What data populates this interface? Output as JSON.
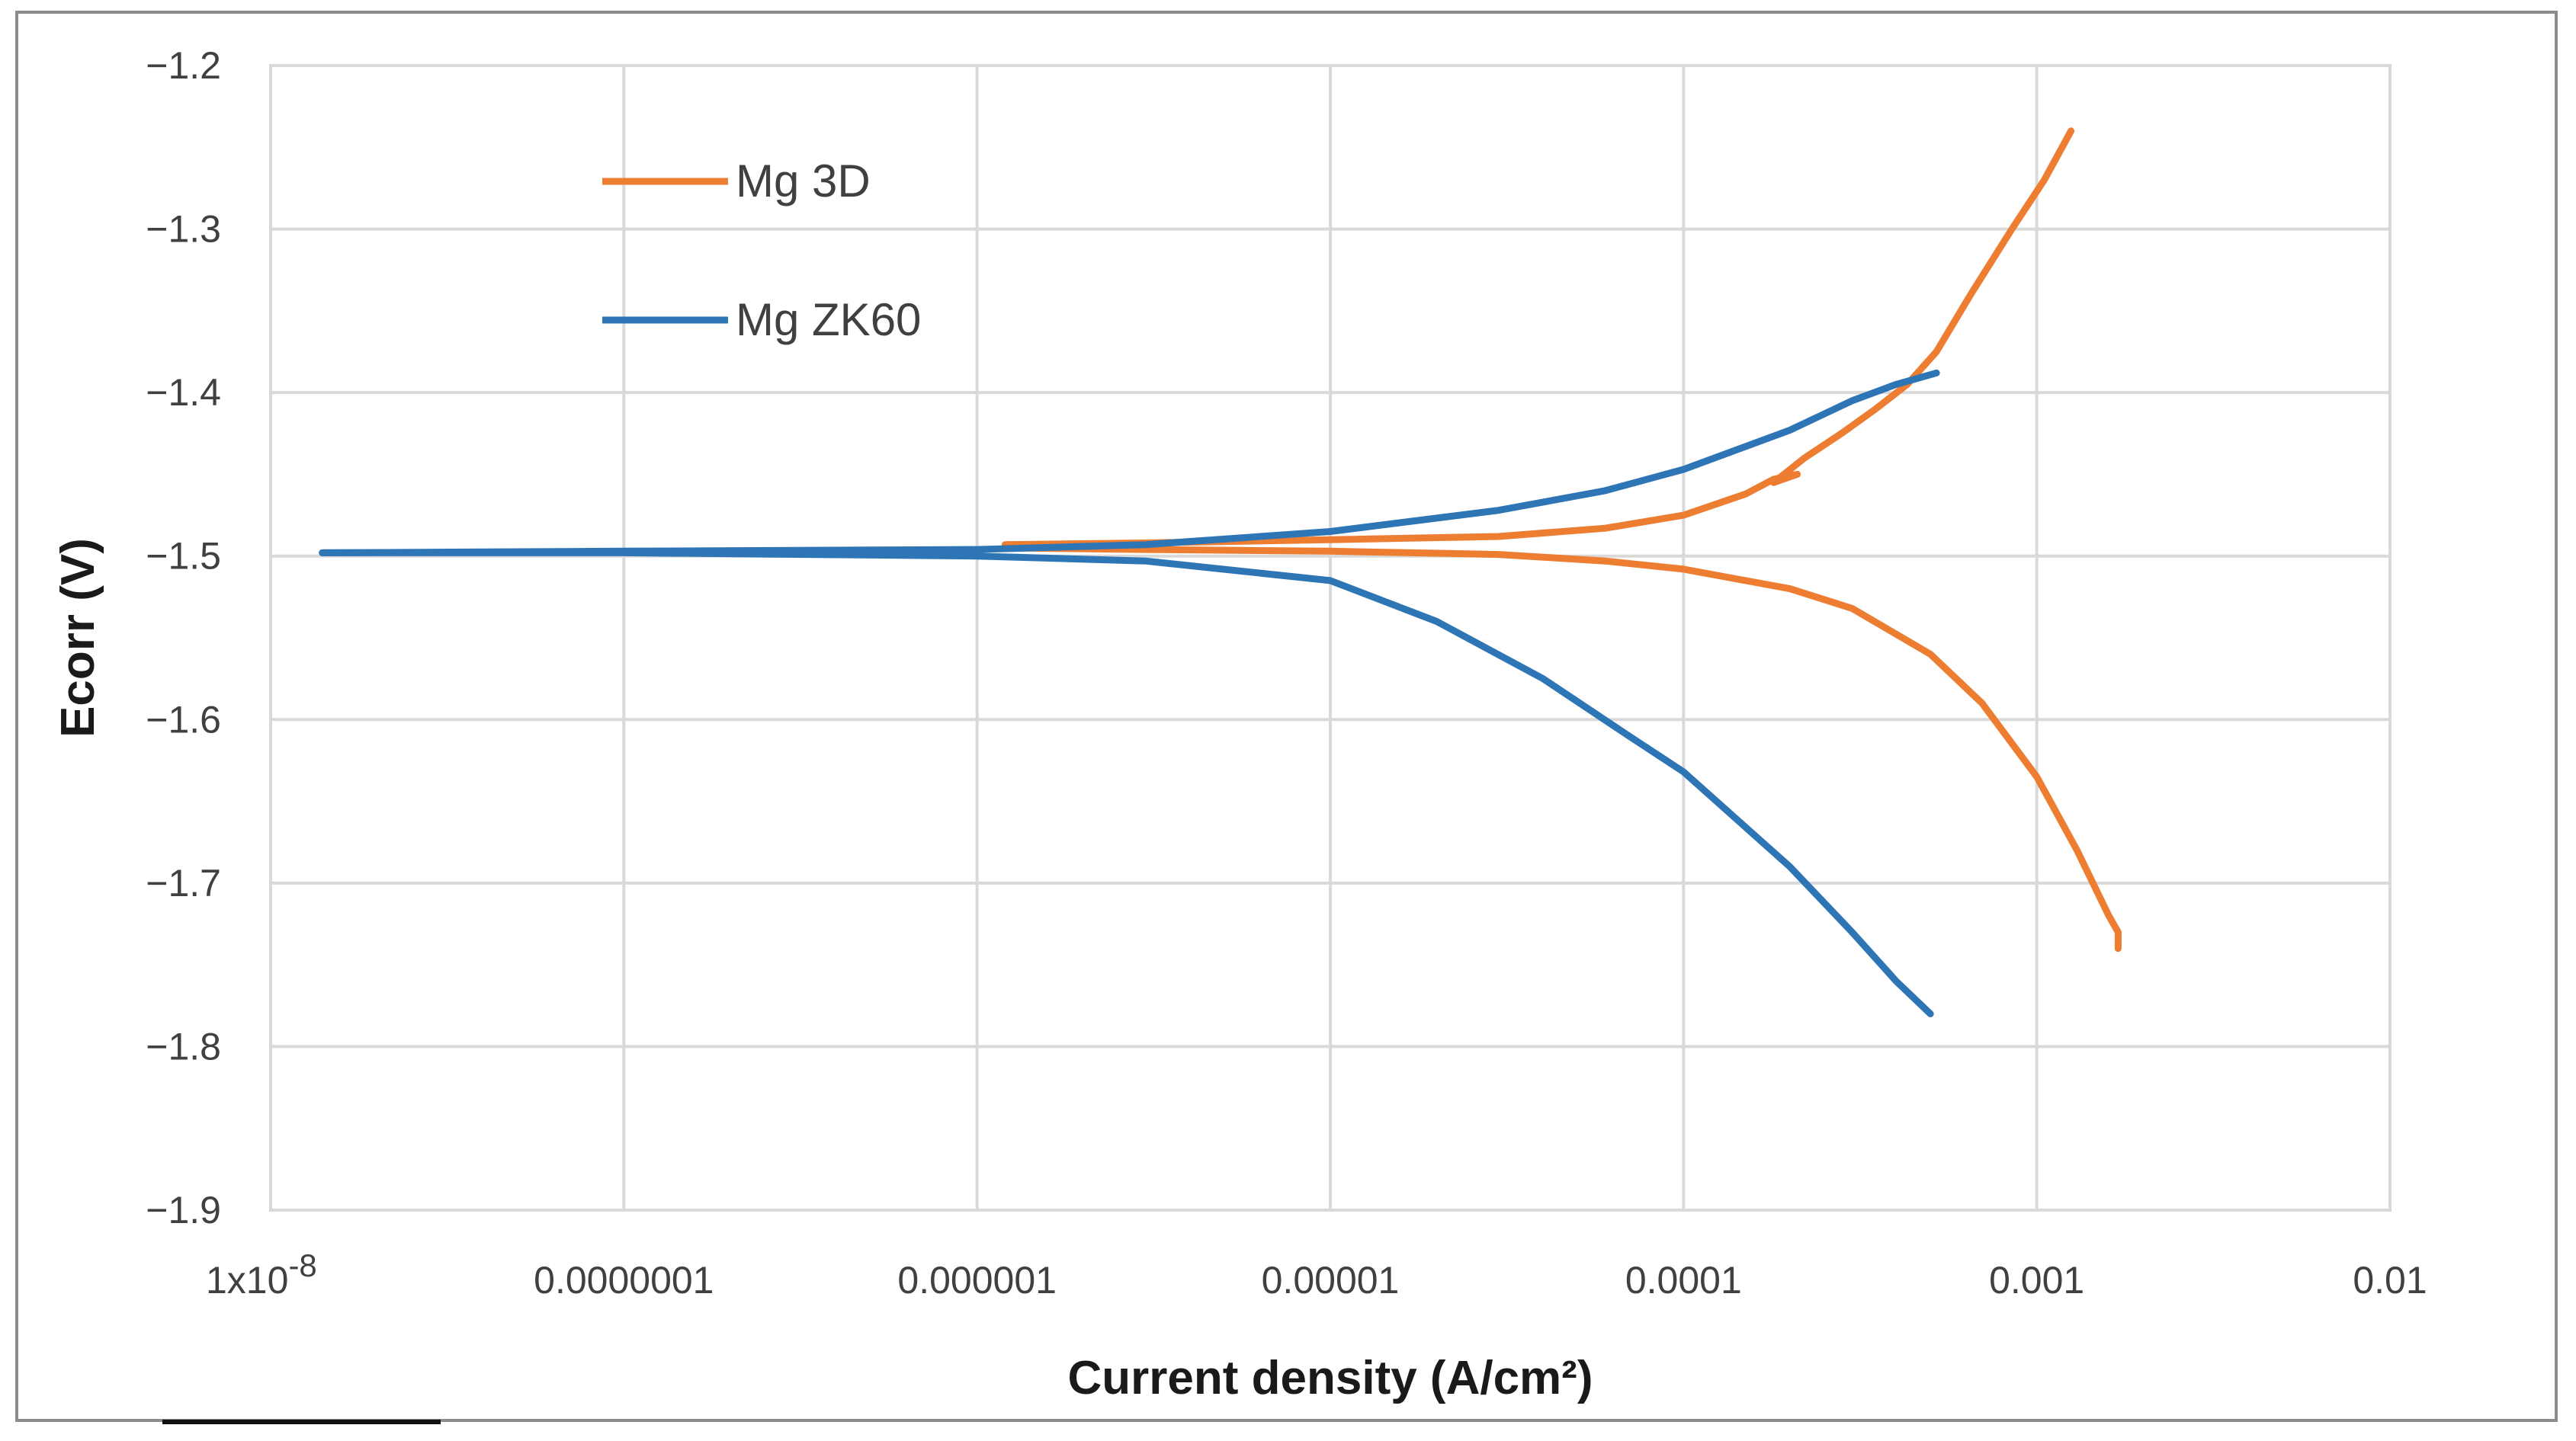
{
  "chart_data": {
    "type": "line",
    "title": "",
    "xlabel": "Current density (A/cm²)",
    "ylabel": "Ecorr (V)",
    "x_scale": "log",
    "xlim": [
      1e-08,
      0.01
    ],
    "ylim": [
      -1.9,
      -1.2
    ],
    "grid": true,
    "legend_position": "top-left",
    "x_tick_values": [
      1e-08,
      1e-07,
      1e-06,
      1e-05,
      0.0001,
      0.001,
      0.01
    ],
    "x_tick_labels": [
      "1x10",
      "0.0000001",
      "0.000001",
      "0.00001",
      "0.0001",
      "0.001",
      "0.01"
    ],
    "x_first_tick_exponent": "-8",
    "y_ticks": [
      -1.2,
      -1.3,
      -1.4,
      -1.5,
      -1.6,
      -1.7,
      -1.8,
      -1.9
    ],
    "y_tick_labels": [
      "−1.2",
      "−1.3",
      "−1.4",
      "−1.5",
      "−1.6",
      "−1.7",
      "−1.8",
      "−1.9"
    ],
    "series": [
      {
        "name": "Mg 3D",
        "color": "#ED7D31",
        "branches": [
          {
            "x": [
              1.2e-06,
              3e-06,
              1e-05,
              3e-05,
              6e-05,
              0.0001,
              0.00015,
              0.00018,
              0.00021,
              0.00018,
              0.00022,
              0.00028,
              0.00035,
              0.00043,
              0.00052,
              0.00065,
              0.00085,
              0.00105,
              0.00125
            ],
            "y": [
              -1.493,
              -1.492,
              -1.49,
              -1.488,
              -1.483,
              -1.475,
              -1.462,
              -1.453,
              -1.45,
              -1.455,
              -1.44,
              -1.425,
              -1.41,
              -1.395,
              -1.375,
              -1.34,
              -1.3,
              -1.27,
              -1.24
            ]
          },
          {
            "x": [
              1.2e-06,
              3e-06,
              1e-05,
              3e-05,
              6e-05,
              0.0001,
              0.0002,
              0.0003,
              0.0005,
              0.0007,
              0.001,
              0.0013,
              0.0016,
              0.0017,
              0.0017
            ],
            "y": [
              -1.495,
              -1.496,
              -1.497,
              -1.499,
              -1.503,
              -1.508,
              -1.52,
              -1.532,
              -1.56,
              -1.59,
              -1.635,
              -1.68,
              -1.72,
              -1.73,
              -1.74
            ]
          }
        ]
      },
      {
        "name": "Mg ZK60",
        "color": "#2E75B6",
        "branches": [
          {
            "x": [
              1.4e-08,
              1e-07,
              1e-06,
              3e-06,
              1e-05,
              3e-05,
              6e-05,
              0.0001,
              0.0002,
              0.0003,
              0.0004,
              0.00052
            ],
            "y": [
              -1.498,
              -1.497,
              -1.496,
              -1.493,
              -1.485,
              -1.472,
              -1.46,
              -1.447,
              -1.423,
              -1.405,
              -1.395,
              -1.388
            ]
          },
          {
            "x": [
              1.4e-08,
              1e-07,
              1e-06,
              3e-06,
              1e-05,
              2e-05,
              4e-05,
              7e-05,
              0.0001,
              0.0002,
              0.0003,
              0.0004,
              0.0005
            ],
            "y": [
              -1.498,
              -1.498,
              -1.5,
              -1.503,
              -1.515,
              -1.54,
              -1.575,
              -1.61,
              -1.632,
              -1.69,
              -1.73,
              -1.76,
              -1.78
            ]
          }
        ]
      }
    ]
  }
}
